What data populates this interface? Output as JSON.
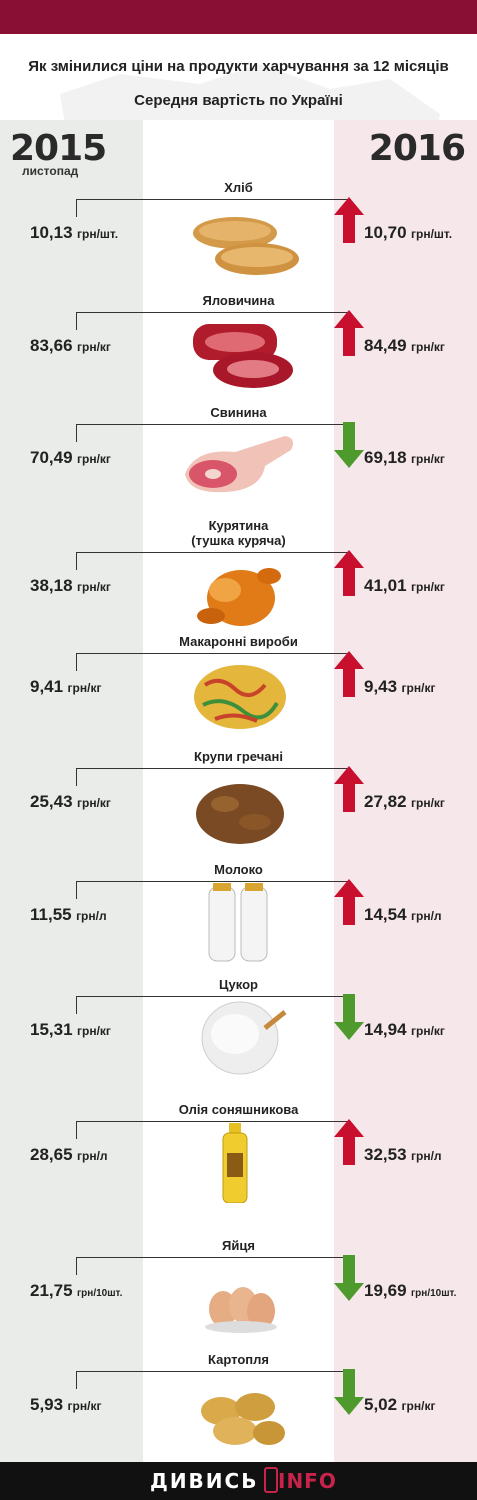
{
  "header": {
    "title": "Як змінилися ціни на продукти харчування за 12 місяців",
    "subtitle": "Середня вартість по Україні"
  },
  "years": {
    "left": "2015",
    "left_month": "листопад",
    "right": "2016"
  },
  "colors": {
    "brand": "#8a0f35",
    "up": "#c8102e",
    "down": "#4f9a2d",
    "left_bg": "#e9ece8",
    "right_bg": "#f5e7ea"
  },
  "items": [
    {
      "name": "Хліб",
      "price_2015": "10,13",
      "price_2016": "10,70",
      "unit": "грн/шт.",
      "trend": "up",
      "icon": "bread-icon"
    },
    {
      "name": "Яловичина",
      "price_2015": "83,66",
      "price_2016": "84,49",
      "unit": "грн/кг",
      "trend": "up",
      "icon": "beef-icon"
    },
    {
      "name": "Свинина",
      "price_2015": "70,49",
      "price_2016": "69,18",
      "unit": "грн/кг",
      "trend": "down",
      "icon": "pork-icon"
    },
    {
      "name": "Курятина\n(тушка куряча)",
      "price_2015": "38,18",
      "price_2016": "41,01",
      "unit": "грн/кг",
      "trend": "up",
      "icon": "chicken-icon"
    },
    {
      "name": "Макаронні вироби",
      "price_2015": "9,41",
      "price_2016": "9,43",
      "unit": "грн/кг",
      "trend": "up",
      "icon": "pasta-icon"
    },
    {
      "name": "Крупи гречані",
      "price_2015": "25,43",
      "price_2016": "27,82",
      "unit": "грн/кг",
      "trend": "up",
      "icon": "buckwheat-icon"
    },
    {
      "name": "Молоко",
      "price_2015": "11,55",
      "price_2016": "14,54",
      "unit": "грн/л",
      "trend": "up",
      "icon": "milk-icon"
    },
    {
      "name": "Цукор",
      "price_2015": "15,31",
      "price_2016": "14,94",
      "unit": "грн/кг",
      "trend": "down",
      "icon": "sugar-icon"
    },
    {
      "name": "Олія соняшникова",
      "price_2015": "28,65",
      "price_2016": "32,53",
      "unit": "грн/л",
      "trend": "up",
      "icon": "oil-bottle-icon"
    },
    {
      "name": "Яйця",
      "price_2015": "21,75",
      "price_2016": "19,69",
      "unit": "грн/10шт.",
      "trend": "down",
      "icon": "eggs-icon"
    },
    {
      "name": "Картопля",
      "price_2015": "5,93",
      "price_2016": "5,02",
      "unit": "грн/кг",
      "trend": "down",
      "icon": "potatoes-icon"
    }
  ],
  "footer": {
    "logo_main": "ДИВИСЬ",
    "logo_accent": "INFO"
  }
}
